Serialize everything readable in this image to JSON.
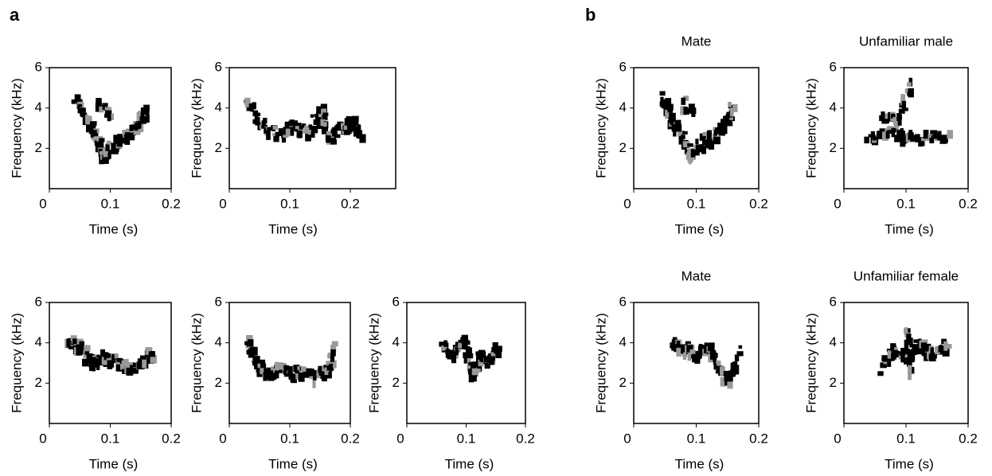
{
  "panels": [
    {
      "label": "a",
      "plots": [
        {
          "xlabel": "Time (s)",
          "ylabel": "Frequency (kHz)",
          "xlim": [
            0,
            0.2
          ],
          "ylim": [
            0,
            6
          ],
          "xticks": [
            0,
            0.1,
            0.2
          ],
          "yticks": [
            2,
            4,
            6
          ]
        },
        {
          "xlabel": "Time (s)",
          "ylabel": "Frequency (kHz)",
          "xlim": [
            0,
            0.275
          ],
          "ylim": [
            0,
            6
          ],
          "xticks": [
            0,
            0.1,
            0.2
          ],
          "yticks": [
            2,
            4,
            6
          ]
        },
        {
          "xlabel": "Time (s)",
          "ylabel": "Frequency (kHz)",
          "xlim": [
            0,
            0.2
          ],
          "ylim": [
            0,
            6
          ],
          "xticks": [
            0,
            0.1,
            0.2
          ],
          "yticks": [
            2,
            4,
            6
          ]
        },
        {
          "xlabel": "Time (s)",
          "ylabel": "Frequency (kHz)",
          "xlim": [
            0,
            0.2
          ],
          "ylim": [
            0,
            6
          ],
          "xticks": [
            0,
            0.1,
            0.2
          ],
          "yticks": [
            2,
            4,
            6
          ]
        },
        {
          "xlabel": "Time (s)",
          "ylabel": "Frequency (kHz)",
          "xlim": [
            0,
            0.2
          ],
          "ylim": [
            0,
            6
          ],
          "xticks": [
            0,
            0.1,
            0.2
          ],
          "yticks": [
            2,
            4,
            6
          ]
        }
      ]
    },
    {
      "label": "b",
      "plots": [
        {
          "title": "Mate",
          "xlabel": "Time (s)",
          "ylabel": "Frequency (kHz)",
          "xlim": [
            0,
            0.2
          ],
          "ylim": [
            0,
            6
          ],
          "xticks": [
            0,
            0.1,
            0.2
          ],
          "yticks": [
            2,
            4,
            6
          ]
        },
        {
          "title": "Unfamiliar male",
          "xlabel": "Time (s)",
          "ylabel": "Frequency (kHz)",
          "xlim": [
            0,
            0.2
          ],
          "ylim": [
            0,
            6
          ],
          "xticks": [
            0,
            0.1,
            0.2
          ],
          "yticks": [
            2,
            4,
            6
          ]
        },
        {
          "title": "Mate",
          "xlabel": "Time (s)",
          "ylabel": "Frequency (kHz)",
          "xlim": [
            0,
            0.2
          ],
          "ylim": [
            0,
            6
          ],
          "xticks": [
            0,
            0.1,
            0.2
          ],
          "yticks": [
            2,
            4,
            6
          ]
        },
        {
          "title": "Unfamiliar female",
          "xlabel": "Time (s)",
          "ylabel": "Frequency (kHz)",
          "xlim": [
            0,
            0.2
          ],
          "ylim": [
            0,
            6
          ],
          "xticks": [
            0,
            0.1,
            0.2
          ],
          "yticks": [
            2,
            4,
            6
          ]
        }
      ]
    }
  ]
}
